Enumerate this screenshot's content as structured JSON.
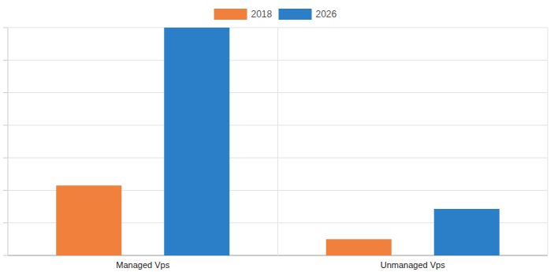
{
  "chart_data": {
    "type": "bar",
    "categories": [
      "Managed Vps",
      "Unmanaged Vps"
    ],
    "series": [
      {
        "name": "2018",
        "color": "#f0803c",
        "values": [
          2.15,
          0.5
        ]
      },
      {
        "name": "2026",
        "color": "#2b7fc8",
        "values": [
          7,
          1.43
        ]
      }
    ],
    "ylim": [
      0,
      7
    ],
    "yticks": [
      0,
      1,
      2,
      3,
      4,
      5,
      6,
      7
    ],
    "grid": true,
    "legend": "top",
    "tick_labels": "x"
  }
}
